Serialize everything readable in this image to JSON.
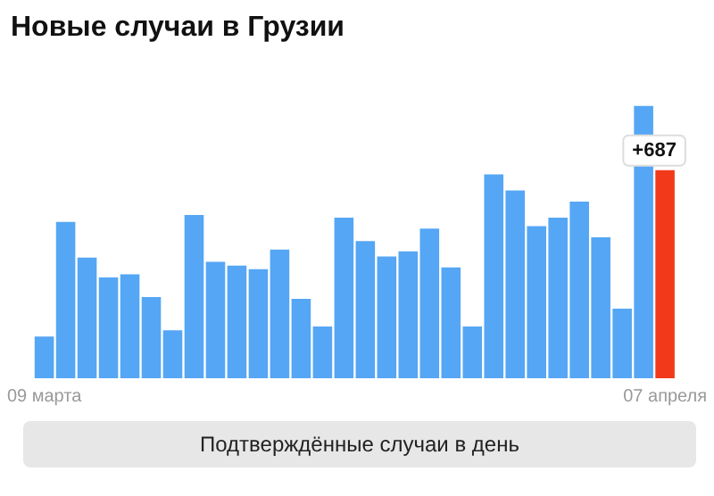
{
  "chart_data": {
    "type": "bar",
    "title": "Новые случаи в Грузии",
    "relative": false,
    "categories": [
      "09 марта",
      null,
      null,
      null,
      null,
      null,
      null,
      null,
      null,
      null,
      null,
      null,
      null,
      null,
      null,
      null,
      null,
      null,
      null,
      null,
      null,
      null,
      null,
      null,
      null,
      null,
      null,
      null,
      null,
      "07 апреля"
    ],
    "values": [
      138,
      516,
      398,
      333,
      343,
      268,
      158,
      539,
      384,
      372,
      360,
      425,
      262,
      171,
      530,
      453,
      402,
      419,
      494,
      366,
      171,
      673,
      620,
      502,
      530,
      583,
      465,
      230,
      900,
      687
    ],
    "colors": [
      "#55a6f5",
      "#55a6f5",
      "#55a6f5",
      "#55a6f5",
      "#55a6f5",
      "#55a6f5",
      "#55a6f5",
      "#55a6f5",
      "#55a6f5",
      "#55a6f5",
      "#55a6f5",
      "#55a6f5",
      "#55a6f5",
      "#55a6f5",
      "#55a6f5",
      "#55a6f5",
      "#55a6f5",
      "#55a6f5",
      "#55a6f5",
      "#55a6f5",
      "#55a6f5",
      "#55a6f5",
      "#55a6f5",
      "#55a6f5",
      "#55a6f5",
      "#55a6f5",
      "#55a6f5",
      "#55a6f5",
      "#55a6f5",
      "#f23a1a"
    ],
    "value_labels": [
      null,
      null,
      null,
      null,
      null,
      null,
      null,
      null,
      null,
      null,
      null,
      null,
      null,
      null,
      null,
      null,
      null,
      null,
      null,
      null,
      null,
      null,
      null,
      null,
      null,
      null,
      null,
      null,
      null,
      "+687"
    ],
    "grid": false,
    "legend": false,
    "annotations": [
      "Подтверждённые случаи в день"
    ]
  }
}
